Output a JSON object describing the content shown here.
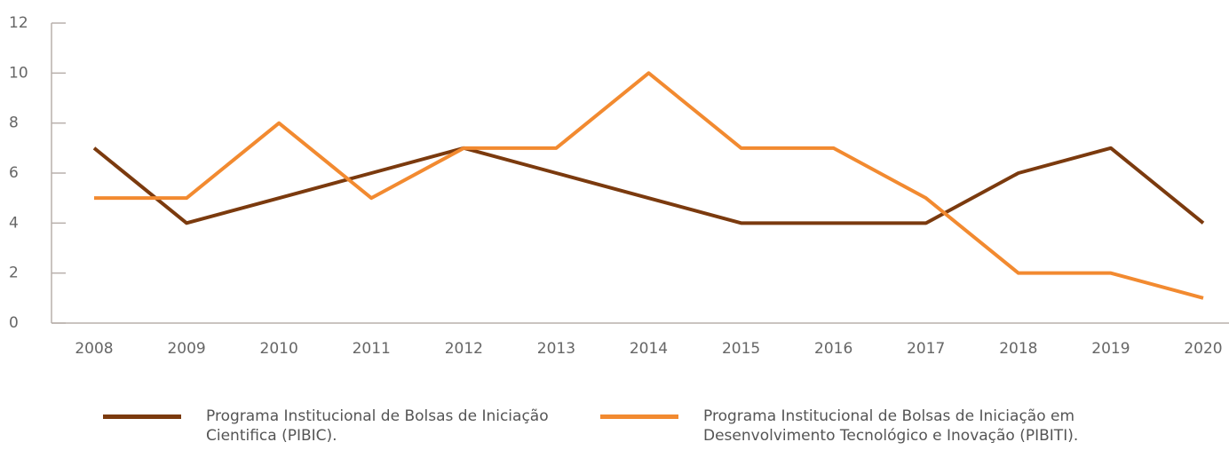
{
  "chart_data": {
    "type": "line",
    "categories": [
      "2008",
      "2009",
      "2010",
      "2011",
      "2012",
      "2013",
      "2014",
      "2015",
      "2016",
      "2017",
      "2018",
      "2019",
      "2020"
    ],
    "series": [
      {
        "name": "Programa Institucional de Bolsas de Iniciação Cientifica (PIBIC).",
        "color": "#7b3a0e",
        "values": [
          7,
          4,
          5,
          6,
          7,
          6,
          5,
          4,
          4,
          4,
          6,
          7,
          4
        ]
      },
      {
        "name": "Programa Institucional de Bolsas de Iniciação em Desenvolvimento Tecnológico e Inovação (PIBITI).",
        "color": "#f28a30",
        "values": [
          5,
          5,
          8,
          5,
          7,
          7,
          10,
          7,
          7,
          5,
          2,
          2,
          1
        ]
      }
    ],
    "ylim": [
      0,
      12
    ],
    "yticks": [
      0,
      2,
      4,
      6,
      8,
      10,
      12
    ]
  }
}
